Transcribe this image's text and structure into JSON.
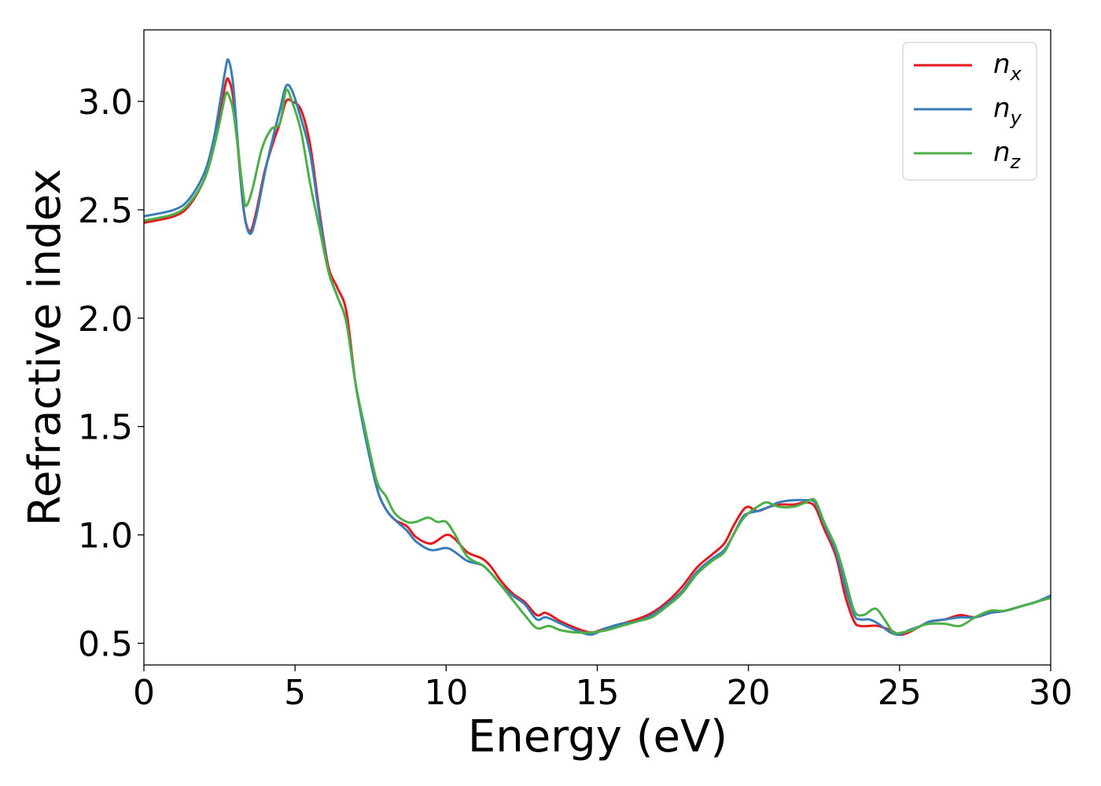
{
  "chart_data": {
    "type": "line",
    "title": "",
    "xlabel": "Energy (eV)",
    "ylabel": "Refractive index",
    "xlim": [
      0,
      30
    ],
    "ylim": [
      0.4,
      3.33
    ],
    "xticks": [
      0,
      5,
      10,
      15,
      20,
      25,
      30
    ],
    "xtick_labels": [
      "0",
      "5",
      "10",
      "15",
      "20",
      "25",
      "30"
    ],
    "yticks": [
      0.5,
      1.0,
      1.5,
      2.0,
      2.5,
      3.0
    ],
    "ytick_labels": [
      "0.5",
      "1.0",
      "1.5",
      "2.0",
      "2.5",
      "3.0"
    ],
    "grid": false,
    "legend_position": "top-right",
    "series": [
      {
        "name": "n",
        "subscript": "x",
        "color": "#e41a1c",
        "points": [
          [
            0,
            2.44
          ],
          [
            1,
            2.47
          ],
          [
            1.5,
            2.52
          ],
          [
            2,
            2.64
          ],
          [
            2.3,
            2.78
          ],
          [
            2.5,
            2.92
          ],
          [
            2.7,
            3.08
          ],
          [
            2.8,
            3.1
          ],
          [
            2.95,
            3.02
          ],
          [
            3.1,
            2.8
          ],
          [
            3.3,
            2.5
          ],
          [
            3.5,
            2.4
          ],
          [
            3.7,
            2.48
          ],
          [
            4,
            2.68
          ],
          [
            4.3,
            2.82
          ],
          [
            4.5,
            2.9
          ],
          [
            4.7,
            3.0
          ],
          [
            4.9,
            3.0
          ],
          [
            5.2,
            2.96
          ],
          [
            5.5,
            2.8
          ],
          [
            5.8,
            2.5
          ],
          [
            6.1,
            2.24
          ],
          [
            6.4,
            2.14
          ],
          [
            6.7,
            2.03
          ],
          [
            7,
            1.7
          ],
          [
            7.3,
            1.48
          ],
          [
            7.7,
            1.22
          ],
          [
            8,
            1.12
          ],
          [
            8.3,
            1.07
          ],
          [
            8.7,
            1.04
          ],
          [
            9,
            0.99
          ],
          [
            9.5,
            0.96
          ],
          [
            10,
            1.0
          ],
          [
            10.3,
            0.98
          ],
          [
            10.7,
            0.92
          ],
          [
            11.2,
            0.89
          ],
          [
            11.5,
            0.85
          ],
          [
            11.8,
            0.79
          ],
          [
            12.2,
            0.73
          ],
          [
            12.6,
            0.69
          ],
          [
            13,
            0.63
          ],
          [
            13.3,
            0.64
          ],
          [
            13.8,
            0.6
          ],
          [
            14.3,
            0.57
          ],
          [
            14.8,
            0.55
          ],
          [
            15.3,
            0.57
          ],
          [
            15.8,
            0.59
          ],
          [
            16.3,
            0.61
          ],
          [
            16.8,
            0.64
          ],
          [
            17.3,
            0.69
          ],
          [
            17.8,
            0.76
          ],
          [
            18.3,
            0.85
          ],
          [
            18.8,
            0.91
          ],
          [
            19.2,
            0.96
          ],
          [
            19.5,
            1.04
          ],
          [
            19.8,
            1.11
          ],
          [
            20,
            1.13
          ],
          [
            20.3,
            1.11
          ],
          [
            20.7,
            1.13
          ],
          [
            21,
            1.14
          ],
          [
            21.5,
            1.14
          ],
          [
            21.9,
            1.15
          ],
          [
            22.2,
            1.13
          ],
          [
            22.5,
            1.03
          ],
          [
            22.9,
            0.9
          ],
          [
            23.2,
            0.72
          ],
          [
            23.5,
            0.6
          ],
          [
            23.7,
            0.58
          ],
          [
            24,
            0.58
          ],
          [
            24.3,
            0.58
          ],
          [
            24.7,
            0.56
          ],
          [
            25,
            0.54
          ],
          [
            25.3,
            0.55
          ],
          [
            25.7,
            0.58
          ],
          [
            26,
            0.6
          ],
          [
            26.5,
            0.61
          ],
          [
            27,
            0.63
          ],
          [
            27.5,
            0.62
          ],
          [
            28,
            0.64
          ],
          [
            28.5,
            0.65
          ],
          [
            29,
            0.67
          ],
          [
            29.5,
            0.69
          ],
          [
            30,
            0.71
          ]
        ]
      },
      {
        "name": "n",
        "subscript": "y",
        "color": "#377eb8",
        "points": [
          [
            0,
            2.47
          ],
          [
            1,
            2.5
          ],
          [
            1.5,
            2.55
          ],
          [
            2,
            2.67
          ],
          [
            2.3,
            2.82
          ],
          [
            2.5,
            2.98
          ],
          [
            2.7,
            3.15
          ],
          [
            2.8,
            3.19
          ],
          [
            2.95,
            3.08
          ],
          [
            3.1,
            2.82
          ],
          [
            3.3,
            2.5
          ],
          [
            3.5,
            2.39
          ],
          [
            3.7,
            2.46
          ],
          [
            4,
            2.67
          ],
          [
            4.3,
            2.85
          ],
          [
            4.5,
            2.96
          ],
          [
            4.7,
            3.07
          ],
          [
            4.9,
            3.05
          ],
          [
            5.2,
            2.92
          ],
          [
            5.5,
            2.76
          ],
          [
            5.8,
            2.48
          ],
          [
            6.1,
            2.22
          ],
          [
            6.4,
            2.1
          ],
          [
            6.7,
            1.98
          ],
          [
            7,
            1.7
          ],
          [
            7.3,
            1.47
          ],
          [
            7.7,
            1.22
          ],
          [
            8,
            1.12
          ],
          [
            8.3,
            1.07
          ],
          [
            8.7,
            1.02
          ],
          [
            9,
            0.97
          ],
          [
            9.5,
            0.93
          ],
          [
            10,
            0.94
          ],
          [
            10.3,
            0.92
          ],
          [
            10.7,
            0.88
          ],
          [
            11.2,
            0.86
          ],
          [
            11.5,
            0.82
          ],
          [
            11.8,
            0.77
          ],
          [
            12.2,
            0.72
          ],
          [
            12.6,
            0.68
          ],
          [
            13,
            0.61
          ],
          [
            13.3,
            0.62
          ],
          [
            13.8,
            0.59
          ],
          [
            14.3,
            0.56
          ],
          [
            14.8,
            0.54
          ],
          [
            15.3,
            0.57
          ],
          [
            15.8,
            0.59
          ],
          [
            16.3,
            0.6
          ],
          [
            16.8,
            0.63
          ],
          [
            17.3,
            0.68
          ],
          [
            17.8,
            0.74
          ],
          [
            18.3,
            0.83
          ],
          [
            18.8,
            0.89
          ],
          [
            19.2,
            0.93
          ],
          [
            19.5,
            1.0
          ],
          [
            19.8,
            1.08
          ],
          [
            20,
            1.1
          ],
          [
            20.3,
            1.11
          ],
          [
            20.7,
            1.13
          ],
          [
            21,
            1.15
          ],
          [
            21.5,
            1.16
          ],
          [
            21.9,
            1.16
          ],
          [
            22.2,
            1.15
          ],
          [
            22.5,
            1.05
          ],
          [
            22.9,
            0.92
          ],
          [
            23.2,
            0.76
          ],
          [
            23.5,
            0.63
          ],
          [
            23.7,
            0.61
          ],
          [
            24,
            0.61
          ],
          [
            24.3,
            0.59
          ],
          [
            24.7,
            0.55
          ],
          [
            25,
            0.54
          ],
          [
            25.3,
            0.56
          ],
          [
            25.7,
            0.58
          ],
          [
            26,
            0.6
          ],
          [
            26.5,
            0.61
          ],
          [
            27,
            0.62
          ],
          [
            27.5,
            0.62
          ],
          [
            28,
            0.64
          ],
          [
            28.5,
            0.65
          ],
          [
            29,
            0.67
          ],
          [
            29.5,
            0.69
          ],
          [
            30,
            0.72
          ]
        ]
      },
      {
        "name": "n",
        "subscript": "z",
        "color": "#4daf4a",
        "points": [
          [
            0,
            2.45
          ],
          [
            1,
            2.48
          ],
          [
            1.5,
            2.53
          ],
          [
            2,
            2.64
          ],
          [
            2.3,
            2.78
          ],
          [
            2.5,
            2.9
          ],
          [
            2.7,
            3.03
          ],
          [
            2.8,
            3.03
          ],
          [
            2.95,
            2.96
          ],
          [
            3.1,
            2.8
          ],
          [
            3.3,
            2.56
          ],
          [
            3.4,
            2.52
          ],
          [
            3.6,
            2.6
          ],
          [
            3.9,
            2.78
          ],
          [
            4.2,
            2.87
          ],
          [
            4.5,
            2.9
          ],
          [
            4.7,
            3.05
          ],
          [
            4.9,
            3.0
          ],
          [
            5.2,
            2.86
          ],
          [
            5.5,
            2.62
          ],
          [
            5.8,
            2.42
          ],
          [
            6.1,
            2.22
          ],
          [
            6.4,
            2.1
          ],
          [
            6.7,
            1.98
          ],
          [
            7,
            1.7
          ],
          [
            7.3,
            1.5
          ],
          [
            7.7,
            1.25
          ],
          [
            8,
            1.18
          ],
          [
            8.3,
            1.1
          ],
          [
            8.7,
            1.06
          ],
          [
            9,
            1.06
          ],
          [
            9.4,
            1.08
          ],
          [
            9.7,
            1.06
          ],
          [
            10,
            1.06
          ],
          [
            10.3,
            1.0
          ],
          [
            10.7,
            0.9
          ],
          [
            11.2,
            0.86
          ],
          [
            11.5,
            0.82
          ],
          [
            11.8,
            0.77
          ],
          [
            12.2,
            0.7
          ],
          [
            12.6,
            0.63
          ],
          [
            13,
            0.57
          ],
          [
            13.4,
            0.58
          ],
          [
            13.8,
            0.56
          ],
          [
            14.3,
            0.55
          ],
          [
            14.8,
            0.55
          ],
          [
            15.3,
            0.56
          ],
          [
            15.8,
            0.58
          ],
          [
            16.3,
            0.6
          ],
          [
            16.8,
            0.62
          ],
          [
            17.3,
            0.67
          ],
          [
            17.8,
            0.73
          ],
          [
            18.3,
            0.82
          ],
          [
            18.8,
            0.88
          ],
          [
            19.2,
            0.92
          ],
          [
            19.5,
            1.0
          ],
          [
            19.8,
            1.07
          ],
          [
            20,
            1.1
          ],
          [
            20.3,
            1.13
          ],
          [
            20.6,
            1.15
          ],
          [
            21,
            1.13
          ],
          [
            21.5,
            1.13
          ],
          [
            21.9,
            1.15
          ],
          [
            22.2,
            1.16
          ],
          [
            22.5,
            1.06
          ],
          [
            22.9,
            0.94
          ],
          [
            23.2,
            0.8
          ],
          [
            23.5,
            0.65
          ],
          [
            23.8,
            0.63
          ],
          [
            24.2,
            0.66
          ],
          [
            24.5,
            0.61
          ],
          [
            24.8,
            0.55
          ],
          [
            25.1,
            0.55
          ],
          [
            25.4,
            0.56
          ],
          [
            25.7,
            0.58
          ],
          [
            26,
            0.59
          ],
          [
            26.5,
            0.59
          ],
          [
            27,
            0.58
          ],
          [
            27.5,
            0.62
          ],
          [
            28,
            0.65
          ],
          [
            28.5,
            0.65
          ],
          [
            29,
            0.67
          ],
          [
            29.5,
            0.69
          ],
          [
            30,
            0.71
          ]
        ]
      }
    ]
  }
}
